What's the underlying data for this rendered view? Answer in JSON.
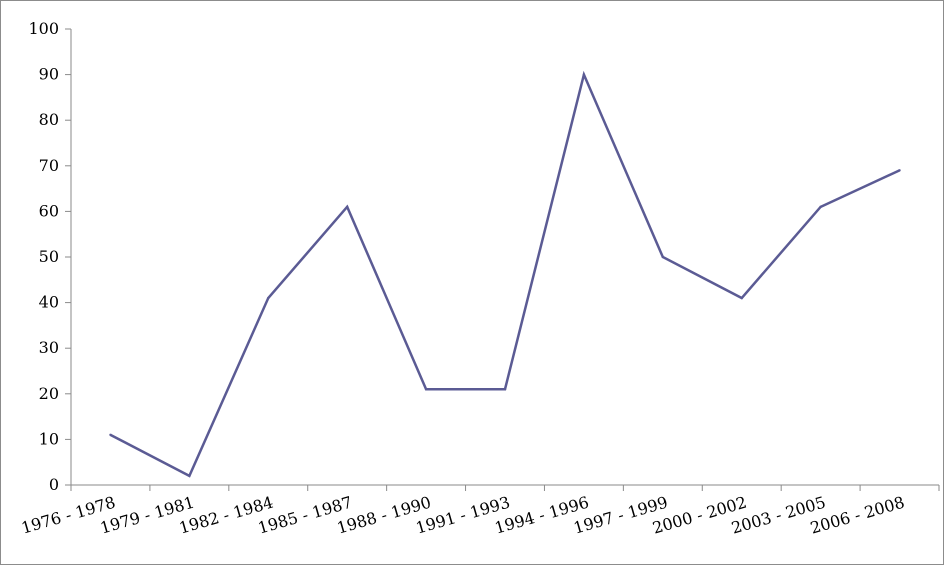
{
  "chart_data": {
    "type": "line",
    "title": "",
    "xlabel": "",
    "ylabel": "",
    "categories": [
      "1976 - 1978",
      "1979 - 1981",
      "1982 - 1984",
      "1985 - 1987",
      "1988 - 1990",
      "1991 - 1993",
      "1994 - 1996",
      "1997 - 1999",
      "2000 - 2002",
      "2003 - 2005",
      "2006 - 2008"
    ],
    "series": [
      {
        "values": [
          11,
          2,
          41,
          61,
          21,
          21,
          90,
          50,
          41,
          61,
          69
        ],
        "color": "#5b5b94"
      }
    ],
    "ylim": [
      0,
      100
    ],
    "yticks": [
      0,
      10,
      20,
      30,
      40,
      50,
      60,
      70,
      80,
      90,
      100
    ],
    "grid": false,
    "legend": "none"
  }
}
